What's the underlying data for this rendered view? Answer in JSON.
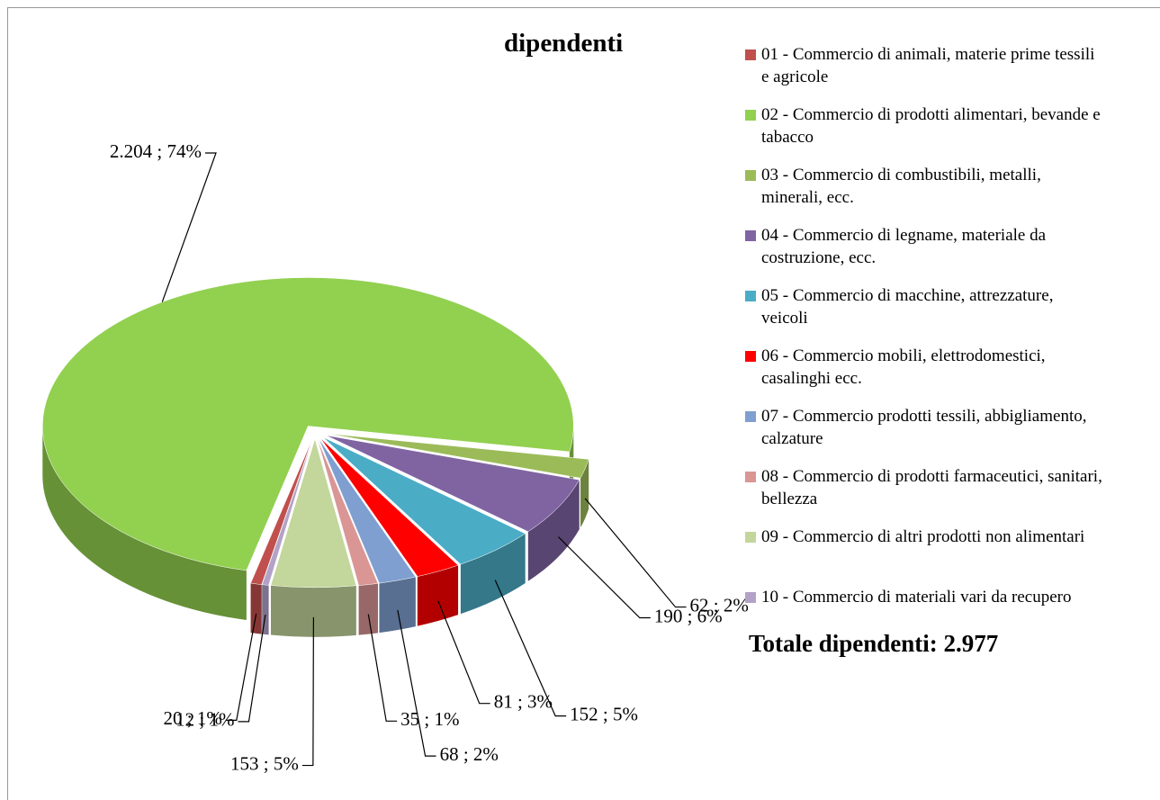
{
  "chart_data": {
    "type": "pie",
    "title": "dipendenti",
    "categories": [
      "01 - Commercio di animali, materie prime tessili e agricole",
      "02 - Commercio di prodotti alimentari, bevande e tabacco",
      "03 - Commercio di combustibili, metalli, minerali, ecc.",
      "04 - Commercio di legname, materiale da costruzione, ecc.",
      "05 - Commercio di macchine, attrezzature, veicoli",
      "06 - Commercio mobili, elettrodomestici, casalinghi ecc.",
      "07 - Commercio prodotti tessili, abbigliamento, calzature",
      "08 - Commercio di prodotti farmaceutici, sanitari, bellezza",
      "09 - Commercio di altri prodotti non alimentari",
      "10 - Commercio di materiali vari da recupero"
    ],
    "values": [
      20,
      2204,
      62,
      190,
      152,
      81,
      68,
      35,
      153,
      12
    ],
    "value_labels": [
      "20 ; 1%",
      "2.204 ; 74%",
      "62 ; 2%",
      "190 ; 6%",
      "152 ; 5%",
      "81 ; 3%",
      "68 ; 2%",
      "35 ; 1%",
      "153 ; 5%",
      "12 ; 1%"
    ],
    "colors": [
      "#c0504d",
      "#92d050",
      "#9bbb59",
      "#8064a2",
      "#4bacc6",
      "#ff0000",
      "#7f9fd0",
      "#d99694",
      "#c3d69b",
      "#b3a2c7"
    ],
    "legend": "right",
    "annotation": "Totale dipendenti: 2.977"
  }
}
